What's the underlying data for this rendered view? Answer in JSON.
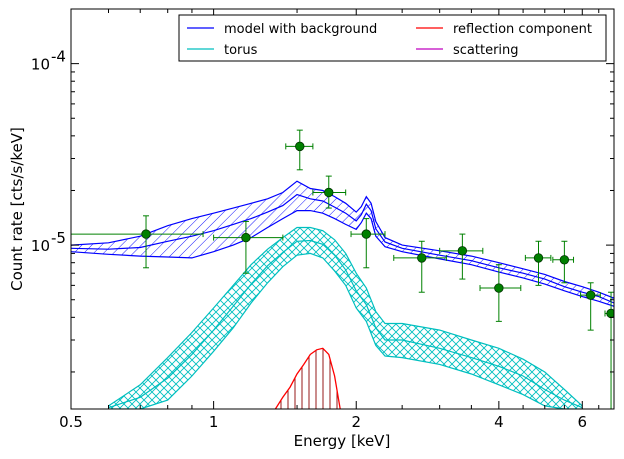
{
  "chart_data": {
    "type": "line",
    "title": "",
    "xlabel": "Energy [keV]",
    "ylabel": "Count rate [cts/s/keV]",
    "xscale": "log",
    "yscale": "log",
    "xlim": [
      0.5,
      7.0
    ],
    "ylim": [
      1.25e-06,
      0.0002
    ],
    "grid": false,
    "legend_position": "top-right",
    "x_ticks": [
      {
        "value": 0.5,
        "label": "0.5"
      },
      {
        "value": 1,
        "label": "1"
      },
      {
        "value": 2,
        "label": "2"
      },
      {
        "value": 4,
        "label": "4"
      },
      {
        "value": 6,
        "label": "6"
      }
    ],
    "y_ticks": [
      {
        "value": 1e-05,
        "base": "10",
        "exp": "-5"
      },
      {
        "value": 0.0001,
        "base": "10",
        "exp": "-4"
      }
    ],
    "series": [
      {
        "name": "model with background",
        "color": "#0000ff",
        "style": "band",
        "x": [
          0.5,
          0.6,
          0.7,
          0.8,
          0.9,
          1.0,
          1.1,
          1.2,
          1.3,
          1.4,
          1.5,
          1.6,
          1.7,
          1.8,
          1.9,
          2.0,
          2.05,
          2.1,
          2.15,
          2.2,
          2.3,
          2.5,
          3.0,
          3.5,
          4.0,
          4.5,
          5.0,
          5.5,
          6.0,
          6.5,
          7.0
        ],
        "upper": [
          1e-05,
          1.03e-05,
          1.12e-05,
          1.28e-05,
          1.4e-05,
          1.5e-05,
          1.6e-05,
          1.7e-05,
          1.8e-05,
          1.95e-05,
          2.25e-05,
          2.05e-05,
          2e-05,
          1.85e-05,
          1.7e-05,
          1.52e-05,
          1.63e-05,
          1.85e-05,
          1.7e-05,
          1.35e-05,
          1.1e-05,
          1e-05,
          9.3e-06,
          8.7e-06,
          8e-06,
          7.4e-06,
          6.9e-06,
          6.3e-06,
          5.9e-06,
          5.5e-06,
          5.1e-06
        ],
        "lower": [
          9.2e-06,
          8.9e-06,
          8.7e-06,
          8.6e-06,
          8.5e-06,
          9.2e-06,
          1e-05,
          1.1e-05,
          1.25e-05,
          1.4e-05,
          1.55e-05,
          1.55e-05,
          1.5e-05,
          1.4e-05,
          1.3e-05,
          1.22e-05,
          1.33e-05,
          1.5e-05,
          1.4e-05,
          1.12e-05,
          9.8e-06,
          9.2e-06,
          8.4e-06,
          7.8e-06,
          7.1e-06,
          6.6e-06,
          6.1e-06,
          5.6e-06,
          5.2e-06,
          4.9e-06,
          4.6e-06
        ],
        "values": [
          9.6e-06,
          9.5e-06,
          9.7e-06,
          1.05e-05,
          1.12e-05,
          1.2e-05,
          1.3e-05,
          1.4e-05,
          1.52e-05,
          1.65e-05,
          1.9e-05,
          1.8e-05,
          1.75e-05,
          1.62e-05,
          1.5e-05,
          1.36e-05,
          1.47e-05,
          1.68e-05,
          1.55e-05,
          1.23e-05,
          1.04e-05,
          9.6e-06,
          8.8e-06,
          8.2e-06,
          7.5e-06,
          7e-06,
          6.5e-06,
          5.9e-06,
          5.5e-06,
          5.2e-06,
          4.8e-06
        ]
      },
      {
        "name": "torus",
        "color": "#00bfbf",
        "style": "band",
        "x": [
          0.6,
          0.7,
          0.8,
          0.9,
          1.0,
          1.1,
          1.2,
          1.3,
          1.4,
          1.5,
          1.6,
          1.7,
          1.8,
          1.9,
          2.0,
          2.1,
          2.2,
          2.3,
          2.5,
          3.0,
          3.5,
          4.0,
          4.5,
          5.0,
          5.5,
          6.0
        ],
        "upper": [
          1.3e-06,
          1.7e-06,
          2.4e-06,
          3.3e-06,
          4.5e-06,
          6e-06,
          7.8e-06,
          9.5e-06,
          1.1e-05,
          1.25e-05,
          1.25e-05,
          1.2e-05,
          1.07e-05,
          9e-06,
          7e-06,
          5.8e-06,
          4.3e-06,
          3.7e-06,
          3.7e-06,
          3.4e-06,
          3e-06,
          2.7e-06,
          2.35e-06,
          2e-06,
          1.6e-06,
          1.3e-06
        ],
        "lower": [
          1.25e-06,
          1.25e-06,
          1.4e-06,
          1.9e-06,
          2.6e-06,
          3.5e-06,
          4.8e-06,
          6.2e-06,
          7.6e-06,
          8.8e-06,
          9e-06,
          8.5e-06,
          7.2e-06,
          6e-06,
          4.5e-06,
          3.8e-06,
          2.8e-06,
          2.45e-06,
          2.4e-06,
          2.2e-06,
          1.95e-06,
          1.7e-06,
          1.5e-06,
          1.3e-06,
          1.25e-06,
          1.25e-06
        ],
        "values": [
          1.27e-06,
          1.45e-06,
          1.85e-06,
          2.5e-06,
          3.4e-06,
          4.6e-06,
          6.1e-06,
          7.7e-06,
          9.1e-06,
          1.05e-05,
          1.06e-05,
          1.01e-05,
          8.8e-06,
          7.3e-06,
          5.6e-06,
          4.7e-06,
          3.5e-06,
          3e-06,
          3e-06,
          2.7e-06,
          2.4e-06,
          2.15e-06,
          1.9e-06,
          1.6e-06,
          1.4e-06,
          1.27e-06
        ]
      },
      {
        "name": "reflection component",
        "color": "#ff0000",
        "style": "hatched-line",
        "x": [
          1.35,
          1.4,
          1.45,
          1.5,
          1.55,
          1.6,
          1.65,
          1.7,
          1.75,
          1.8,
          1.85
        ],
        "values": [
          1.25e-06,
          1.45e-06,
          1.65e-06,
          1.95e-06,
          2.2e-06,
          2.5e-06,
          2.65e-06,
          2.7e-06,
          2.5e-06,
          1.9e-06,
          1.25e-06
        ]
      },
      {
        "name": "scattering",
        "color": "#bf00bf",
        "style": "line",
        "x": [],
        "values": []
      }
    ],
    "data_points": {
      "color": "#008000",
      "points": [
        {
          "x": 0.72,
          "y": 1.15e-05,
          "xlo": 0.5,
          "xhi": 0.95,
          "ylo": 7.5e-06,
          "yhi": 1.45e-05
        },
        {
          "x": 1.17,
          "y": 1.1e-05,
          "xlo": 1.0,
          "xhi": 1.4,
          "ylo": 7e-06,
          "yhi": 1.35e-05
        },
        {
          "x": 1.52,
          "y": 3.5e-05,
          "xlo": 1.42,
          "xhi": 1.62,
          "ylo": 2.6e-05,
          "yhi": 4.3e-05
        },
        {
          "x": 1.75,
          "y": 1.95e-05,
          "xlo": 1.62,
          "xhi": 1.9,
          "ylo": 1.6e-05,
          "yhi": 2.4e-05
        },
        {
          "x": 2.1,
          "y": 1.15e-05,
          "xlo": 1.95,
          "xhi": 2.3,
          "ylo": 7.5e-06,
          "yhi": 1.4e-05
        },
        {
          "x": 2.75,
          "y": 8.5e-06,
          "xlo": 2.4,
          "xhi": 3.1,
          "ylo": 5.5e-06,
          "yhi": 1.05e-05
        },
        {
          "x": 3.35,
          "y": 9.3e-06,
          "xlo": 3.0,
          "xhi": 3.7,
          "ylo": 6.5e-06,
          "yhi": 1.15e-05
        },
        {
          "x": 4.0,
          "y": 5.8e-06,
          "xlo": 3.65,
          "xhi": 4.45,
          "ylo": 3.8e-06,
          "yhi": 7.8e-06
        },
        {
          "x": 4.85,
          "y": 8.5e-06,
          "xlo": 4.55,
          "xhi": 5.15,
          "ylo": 6e-06,
          "yhi": 1.05e-05
        },
        {
          "x": 5.5,
          "y": 8.3e-06,
          "xlo": 5.2,
          "xhi": 5.75,
          "ylo": 6.2e-06,
          "yhi": 1.05e-05
        },
        {
          "x": 6.25,
          "y": 5.3e-06,
          "xlo": 5.95,
          "xhi": 6.55,
          "ylo": 3.4e-06,
          "yhi": 6.2e-06
        },
        {
          "x": 6.9,
          "y": 4.2e-06,
          "xlo": 6.7,
          "xhi": 7.0,
          "ylo": 1.25e-06,
          "yhi": 5.5e-06
        }
      ]
    }
  }
}
